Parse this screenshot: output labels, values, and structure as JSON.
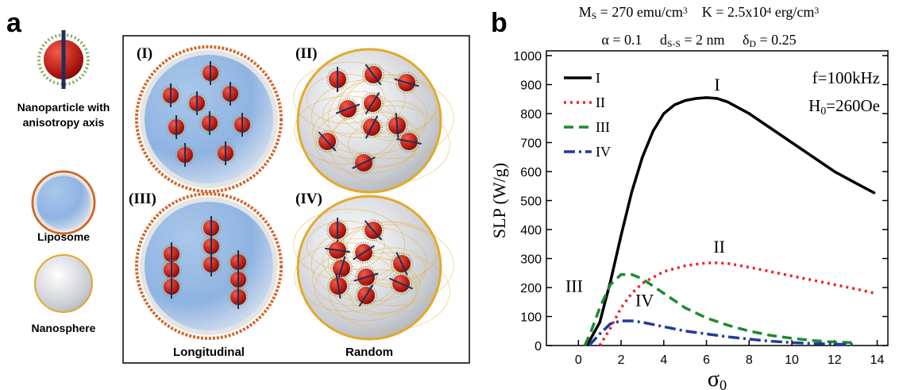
{
  "panel_a": {
    "letter": "a",
    "legend_items": {
      "nanoparticle": [
        "Nanoparticle with",
        "anisotropy axis"
      ],
      "liposome": "Liposome",
      "nanosphere": "Nanosphere"
    },
    "panels": [
      "(I)",
      "(II)",
      "(III)",
      "(IV)"
    ],
    "columns": [
      "Longitudinal",
      "Random"
    ]
  },
  "chart_data": {
    "type": "line",
    "letter": "b",
    "title_lines": [
      [
        {
          "t": "M"
        },
        {
          "t": "S",
          "s": "sub"
        },
        {
          "t": " = 270 emu/cm"
        },
        {
          "t": "3",
          "s": "sup"
        },
        {
          "t": "    K = 2.5x10"
        },
        {
          "t": "4",
          "s": "sup"
        },
        {
          "t": " erg/cm"
        },
        {
          "t": "3",
          "s": "sup"
        }
      ],
      [
        {
          "t": "α = 0.1     d"
        },
        {
          "t": "S-S",
          "s": "sub"
        },
        {
          "t": " = 2 nm     δ"
        },
        {
          "t": "D",
          "s": "sub"
        },
        {
          "t": " = 0.25"
        }
      ]
    ],
    "x_label": [
      {
        "t": "σ"
      },
      {
        "t": "0",
        "s": "sub"
      }
    ],
    "y_label": "SLP (W/g)",
    "xlim": [
      -1.5,
      14.5
    ],
    "ylim": [
      0,
      1000
    ],
    "xticks": [
      0,
      2,
      4,
      6,
      8,
      10,
      12,
      14
    ],
    "yticks": [
      0,
      100,
      200,
      300,
      400,
      500,
      600,
      700,
      800,
      900,
      1000
    ],
    "legend": "top-left",
    "series": [
      {
        "name": "I",
        "color": "#000000",
        "dash": "solid",
        "x": [
          0.4,
          1,
          1.5,
          2,
          2.5,
          3,
          3.5,
          4,
          4.5,
          5,
          5.5,
          6,
          6.5,
          7,
          8,
          9,
          10,
          11,
          12,
          13,
          13.9
        ],
        "values": [
          0,
          80,
          220,
          380,
          530,
          650,
          740,
          800,
          830,
          845,
          852,
          855,
          852,
          840,
          800,
          750,
          700,
          650,
          600,
          560,
          525
        ]
      },
      {
        "name": "II",
        "color": "#e8262a",
        "dash": "dot",
        "x": [
          1,
          1.5,
          2,
          2.5,
          3,
          4,
          5,
          6,
          6.5,
          7,
          8,
          9,
          10,
          11,
          12,
          13,
          13.9
        ],
        "values": [
          0,
          60,
          130,
          180,
          215,
          255,
          275,
          285,
          285,
          283,
          270,
          255,
          240,
          225,
          210,
          195,
          180
        ]
      },
      {
        "name": "III",
        "color": "#1e8a2e",
        "dash": "dash",
        "x": [
          0.3,
          0.6,
          1,
          1.5,
          2,
          2.5,
          3,
          4,
          5,
          6,
          7,
          8,
          9,
          10,
          11,
          12,
          13
        ],
        "values": [
          0,
          50,
          130,
          210,
          245,
          245,
          230,
          180,
          130,
          95,
          70,
          50,
          35,
          25,
          17,
          12,
          10
        ]
      },
      {
        "name": "IV",
        "color": "#1f3c99",
        "dash": "dashdot",
        "x": [
          0.5,
          1,
          1.5,
          2,
          2.5,
          3,
          4,
          5,
          6,
          7,
          8,
          9,
          10,
          11,
          12,
          13
        ],
        "values": [
          0,
          40,
          75,
          85,
          85,
          80,
          65,
          50,
          40,
          30,
          22,
          15,
          10,
          7,
          5,
          3
        ]
      }
    ],
    "annotations": [
      {
        "text": "I",
        "x": 6.5,
        "y": 880
      },
      {
        "text": "II",
        "x": 6.6,
        "y": 320
      },
      {
        "text": "III",
        "x": -0.2,
        "y": 185
      },
      {
        "text": "IV",
        "x": 3.1,
        "y": 135
      }
    ],
    "conditions": [
      [
        {
          "t": "f=100kHz"
        }
      ],
      [
        {
          "t": "H"
        },
        {
          "t": "0",
          "s": "sub"
        },
        {
          "t": "=260Oe"
        }
      ]
    ]
  }
}
